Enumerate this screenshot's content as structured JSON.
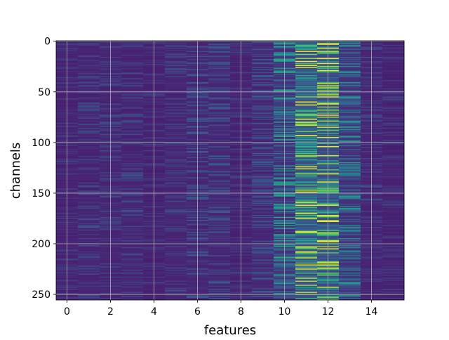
{
  "chart_data": {
    "type": "heatmap",
    "title": "",
    "xlabel": "features",
    "ylabel": "channels",
    "x_ticks": [
      0,
      2,
      4,
      6,
      8,
      10,
      12,
      14
    ],
    "y_ticks": [
      0,
      50,
      100,
      150,
      200,
      250
    ],
    "x_range": [
      -0.5,
      15.5
    ],
    "y_range": [
      -0.5,
      255.5
    ],
    "y_inverted": true,
    "n_features": 16,
    "n_channels": 256,
    "grid": true,
    "colormap": "viridis",
    "value_range": [
      0,
      1
    ],
    "column_profiles": [
      {
        "feature": 0,
        "base": 0.12,
        "variation": 0.05
      },
      {
        "feature": 1,
        "base": 0.13,
        "variation": 0.07
      },
      {
        "feature": 2,
        "base": 0.13,
        "variation": 0.06
      },
      {
        "feature": 3,
        "base": 0.13,
        "variation": 0.07
      },
      {
        "feature": 4,
        "base": 0.12,
        "variation": 0.05
      },
      {
        "feature": 5,
        "base": 0.13,
        "variation": 0.06
      },
      {
        "feature": 6,
        "base": 0.14,
        "variation": 0.09
      },
      {
        "feature": 7,
        "base": 0.14,
        "variation": 0.09
      },
      {
        "feature": 8,
        "base": 0.12,
        "variation": 0.05
      },
      {
        "feature": 9,
        "base": 0.14,
        "variation": 0.09
      },
      {
        "feature": 10,
        "base": 0.18,
        "variation": 0.25
      },
      {
        "feature": 11,
        "base": 0.3,
        "variation": 0.45
      },
      {
        "feature": 12,
        "base": 0.28,
        "variation": 0.45
      },
      {
        "feature": 13,
        "base": 0.18,
        "variation": 0.2
      },
      {
        "feature": 14,
        "base": 0.13,
        "variation": 0.06
      },
      {
        "feature": 15,
        "base": 0.12,
        "variation": 0.05
      }
    ],
    "highlight_cells": [
      {
        "feature": 11,
        "channel": 8,
        "value": 0.6
      },
      {
        "feature": 11,
        "channel": 13,
        "value": 0.8
      },
      {
        "feature": 11,
        "channel": 17,
        "value": 0.85
      },
      {
        "feature": 11,
        "channel": 22,
        "value": 0.7
      },
      {
        "feature": 11,
        "channel": 47,
        "value": 0.55
      },
      {
        "feature": 11,
        "channel": 107,
        "value": 0.6
      },
      {
        "feature": 11,
        "channel": 111,
        "value": 0.7
      },
      {
        "feature": 11,
        "channel": 131,
        "value": 0.85
      },
      {
        "feature": 11,
        "channel": 181,
        "value": 0.5
      },
      {
        "feature": 11,
        "channel": 229,
        "value": 0.7
      },
      {
        "feature": 11,
        "channel": 243,
        "value": 0.55
      },
      {
        "feature": 12,
        "channel": 7,
        "value": 0.95
      },
      {
        "feature": 12,
        "channel": 10,
        "value": 0.9
      },
      {
        "feature": 12,
        "channel": 44,
        "value": 0.98
      },
      {
        "feature": 12,
        "channel": 49,
        "value": 0.9
      },
      {
        "feature": 12,
        "channel": 79,
        "value": 0.85
      },
      {
        "feature": 12,
        "channel": 85,
        "value": 0.95
      },
      {
        "feature": 12,
        "channel": 118,
        "value": 0.5
      },
      {
        "feature": 12,
        "channel": 162,
        "value": 0.95
      },
      {
        "feature": 12,
        "channel": 169,
        "value": 0.65
      },
      {
        "feature": 12,
        "channel": 198,
        "value": 0.98
      },
      {
        "feature": 12,
        "channel": 229,
        "value": 0.75
      },
      {
        "feature": 12,
        "channel": 252,
        "value": 0.6
      }
    ]
  }
}
